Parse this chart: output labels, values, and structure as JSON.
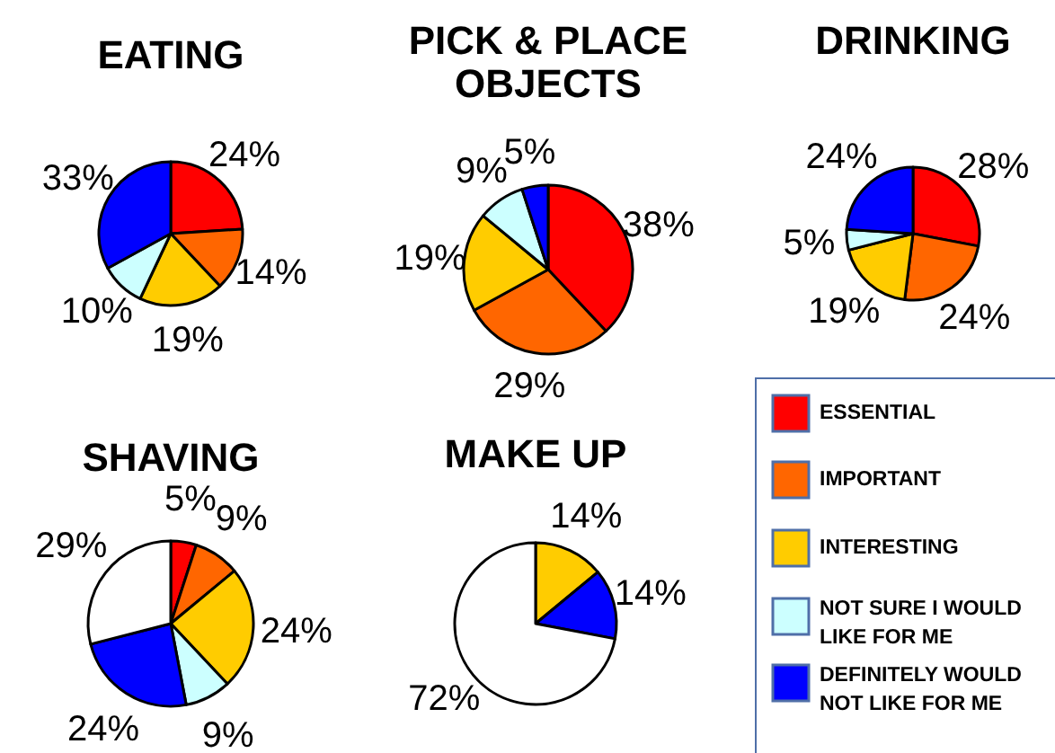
{
  "chart_data": [
    {
      "type": "pie",
      "title": "EATING",
      "categories": [
        "ESSENTIAL",
        "IMPORTANT",
        "INTERESTING",
        "NOT SURE I WOULD LIKE FOR ME",
        "DEFINITELY WOULD NOT LIKE FOR ME"
      ],
      "values": [
        24,
        14,
        19,
        10,
        33
      ],
      "value_labels": [
        "24%",
        "14%",
        "19%",
        "10%",
        "33%"
      ],
      "colors": [
        "#ff0000",
        "#ff6600",
        "#ffcc00",
        "#ccffff",
        "#0000ff"
      ],
      "legend": "bottom right"
    },
    {
      "type": "pie",
      "title": "PICK & PLACE OBJECTS",
      "categories": [
        null,
        null,
        null,
        null,
        null
      ],
      "values": [
        38,
        29,
        19,
        9,
        5
      ],
      "value_labels": [
        "38%",
        "29%",
        "19%",
        "9%",
        "5%"
      ],
      "colors": [
        "#ff0000",
        "#ff6600",
        "#ffcc00",
        "#ccffff",
        "#0000ff"
      ]
    },
    {
      "type": "pie",
      "title": "DRINKING",
      "categories": [
        null,
        null,
        null,
        null,
        null
      ],
      "values": [
        28,
        24,
        19,
        5,
        24
      ],
      "value_labels": [
        "28%",
        "24%",
        "19%",
        "5%",
        "24%"
      ],
      "colors": [
        "#ff0000",
        "#ff6600",
        "#ffcc00",
        "#ccffff",
        "#0000ff"
      ]
    },
    {
      "type": "pie",
      "title": "SHAVING",
      "categories": [
        null,
        null,
        null,
        null,
        null,
        null
      ],
      "values": [
        5,
        9,
        24,
        9,
        24,
        29
      ],
      "value_labels": [
        "5%",
        "9%",
        "24%",
        "9%",
        "24%",
        "29%"
      ],
      "colors": [
        "#ff0000",
        "#ff6600",
        "#ffcc00",
        "#ccffff",
        "#0000ff",
        "#ffffff"
      ]
    },
    {
      "type": "pie",
      "title": "MAKE UP",
      "categories": [
        null,
        null,
        null
      ],
      "values": [
        14,
        14,
        72
      ],
      "value_labels": [
        "14%",
        "14%",
        "72%"
      ],
      "colors": [
        "#ffcc00",
        "#0000ff",
        "#ffffff"
      ]
    }
  ]
}
